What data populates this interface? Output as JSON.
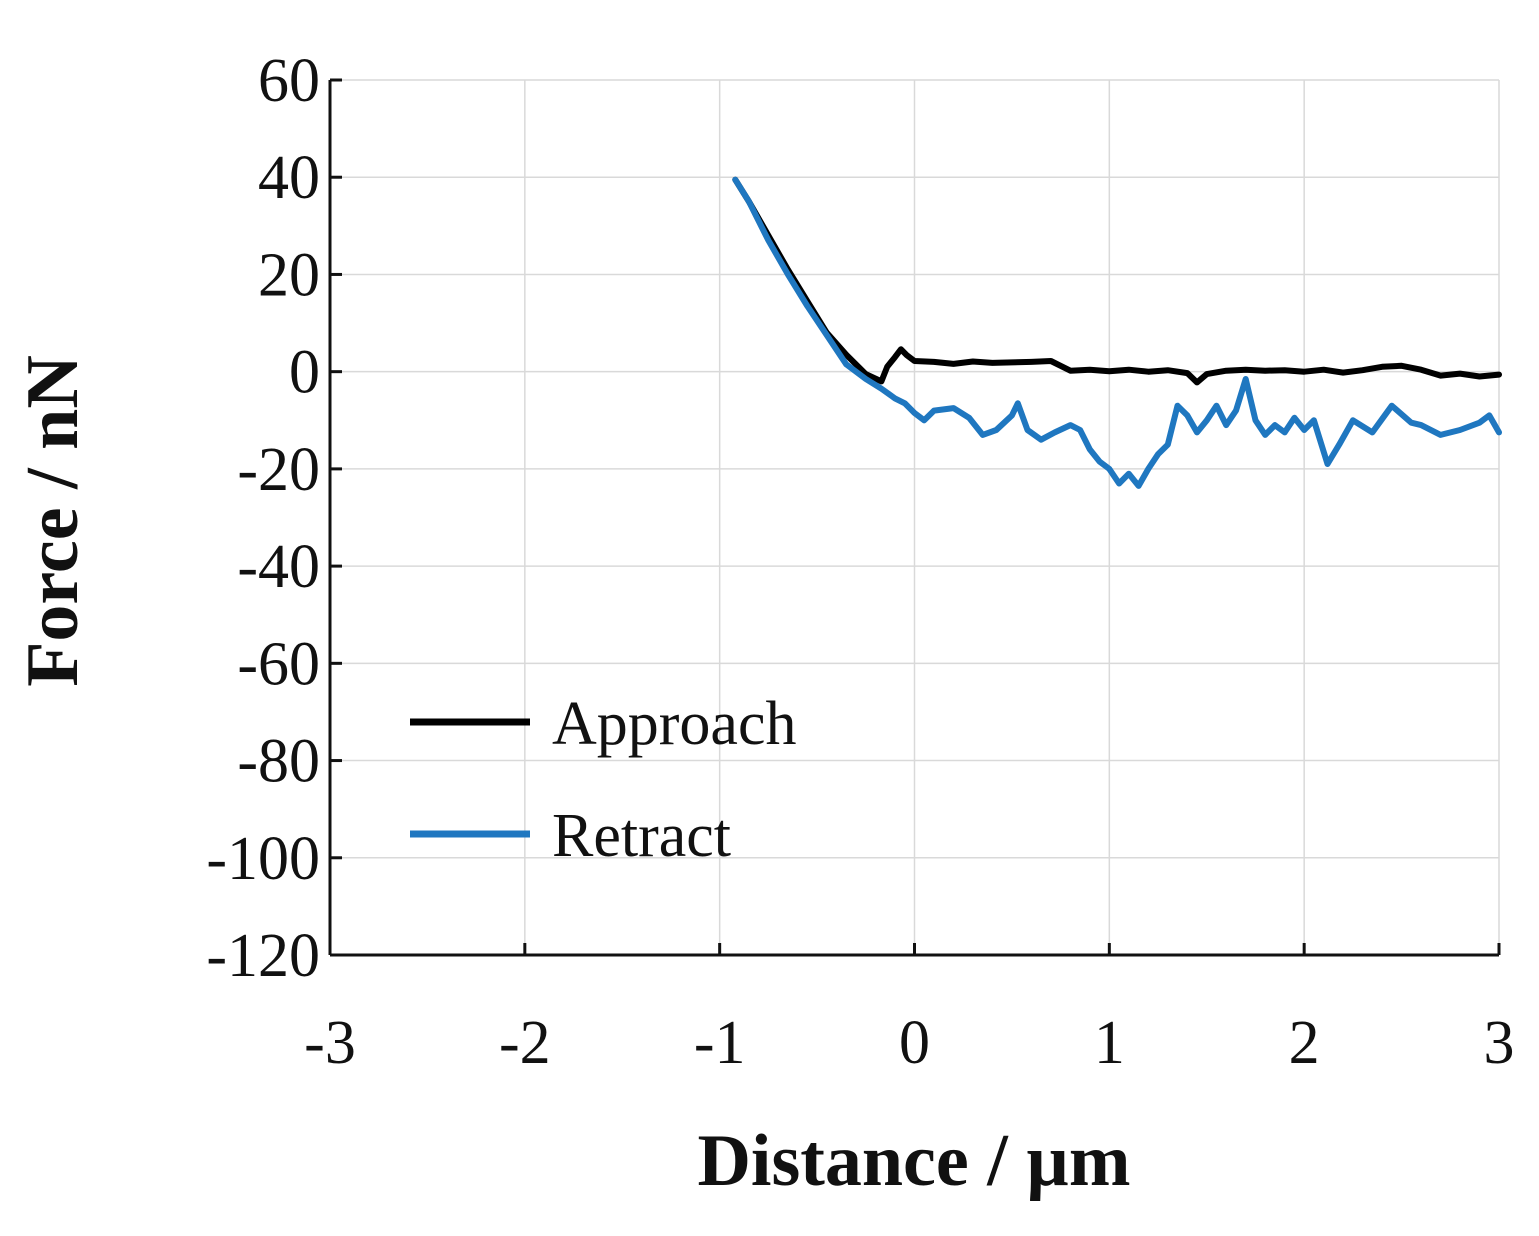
{
  "chart_data": {
    "type": "line",
    "title": "",
    "xlabel": "Distance / µm",
    "ylabel": "Force / nN",
    "xlim": [
      -3,
      3
    ],
    "ylim": [
      -120,
      60
    ],
    "xticks": [
      -3,
      -2,
      -1,
      0,
      1,
      2,
      3
    ],
    "yticks": [
      60,
      40,
      20,
      0,
      -20,
      -40,
      -60,
      -80,
      -100,
      -120
    ],
    "grid": true,
    "legend_position": "lower-left",
    "series": [
      {
        "name": "Approach",
        "color": "#000000",
        "points": [
          [
            -0.92,
            39.5
          ],
          [
            -0.85,
            35
          ],
          [
            -0.75,
            28
          ],
          [
            -0.65,
            21
          ],
          [
            -0.55,
            14.5
          ],
          [
            -0.45,
            8
          ],
          [
            -0.35,
            3.5
          ],
          [
            -0.25,
            -0.5
          ],
          [
            -0.17,
            -2
          ],
          [
            -0.14,
            1
          ],
          [
            -0.1,
            3
          ],
          [
            -0.07,
            4.6
          ],
          [
            -0.04,
            3.4
          ],
          [
            0,
            2.2
          ],
          [
            0.1,
            2.0
          ],
          [
            0.2,
            1.6
          ],
          [
            0.3,
            2.1
          ],
          [
            0.4,
            1.8
          ],
          [
            0.5,
            1.9
          ],
          [
            0.6,
            2.0
          ],
          [
            0.7,
            2.2
          ],
          [
            0.75,
            1.2
          ],
          [
            0.8,
            0.2
          ],
          [
            0.9,
            0.4
          ],
          [
            1.0,
            0.1
          ],
          [
            1.1,
            0.4
          ],
          [
            1.2,
            0.0
          ],
          [
            1.3,
            0.3
          ],
          [
            1.4,
            -0.3
          ],
          [
            1.45,
            -2.2
          ],
          [
            1.5,
            -0.5
          ],
          [
            1.6,
            0.2
          ],
          [
            1.7,
            0.4
          ],
          [
            1.8,
            0.2
          ],
          [
            1.9,
            0.3
          ],
          [
            2.0,
            0.0
          ],
          [
            2.1,
            0.4
          ],
          [
            2.2,
            -0.2
          ],
          [
            2.3,
            0.3
          ],
          [
            2.4,
            1.0
          ],
          [
            2.5,
            1.2
          ],
          [
            2.6,
            0.4
          ],
          [
            2.7,
            -0.8
          ],
          [
            2.8,
            -0.4
          ],
          [
            2.9,
            -1.0
          ],
          [
            3.0,
            -0.6
          ]
        ]
      },
      {
        "name": "Retract",
        "color": "#1f77c0",
        "points": [
          [
            -0.92,
            39.5
          ],
          [
            -0.85,
            35
          ],
          [
            -0.75,
            27
          ],
          [
            -0.65,
            20
          ],
          [
            -0.55,
            13.5
          ],
          [
            -0.45,
            7.5
          ],
          [
            -0.35,
            1.5
          ],
          [
            -0.25,
            -1.5
          ],
          [
            -0.17,
            -3.5
          ],
          [
            -0.1,
            -5.5
          ],
          [
            -0.05,
            -6.5
          ],
          [
            0,
            -8.5
          ],
          [
            0.05,
            -10
          ],
          [
            0.1,
            -8
          ],
          [
            0.2,
            -7.5
          ],
          [
            0.28,
            -9.5
          ],
          [
            0.35,
            -13
          ],
          [
            0.42,
            -12
          ],
          [
            0.5,
            -9
          ],
          [
            0.53,
            -6.5
          ],
          [
            0.58,
            -12
          ],
          [
            0.65,
            -14
          ],
          [
            0.72,
            -12.5
          ],
          [
            0.8,
            -11
          ],
          [
            0.85,
            -12
          ],
          [
            0.9,
            -16
          ],
          [
            0.95,
            -18.5
          ],
          [
            1.0,
            -20
          ],
          [
            1.05,
            -23
          ],
          [
            1.1,
            -21
          ],
          [
            1.15,
            -23.5
          ],
          [
            1.2,
            -20
          ],
          [
            1.25,
            -17
          ],
          [
            1.3,
            -15
          ],
          [
            1.35,
            -7
          ],
          [
            1.4,
            -9
          ],
          [
            1.45,
            -12.5
          ],
          [
            1.5,
            -10
          ],
          [
            1.55,
            -7
          ],
          [
            1.6,
            -11
          ],
          [
            1.65,
            -8
          ],
          [
            1.7,
            -1.5
          ],
          [
            1.75,
            -10
          ],
          [
            1.8,
            -13
          ],
          [
            1.85,
            -11
          ],
          [
            1.9,
            -12.5
          ],
          [
            1.95,
            -9.5
          ],
          [
            2.0,
            -12
          ],
          [
            2.05,
            -10
          ],
          [
            2.12,
            -19
          ],
          [
            2.18,
            -15
          ],
          [
            2.25,
            -10
          ],
          [
            2.35,
            -12.5
          ],
          [
            2.45,
            -7
          ],
          [
            2.55,
            -10.5
          ],
          [
            2.6,
            -11
          ],
          [
            2.7,
            -13
          ],
          [
            2.8,
            -12
          ],
          [
            2.9,
            -10.5
          ],
          [
            2.95,
            -9
          ],
          [
            3.0,
            -12.5
          ]
        ]
      }
    ]
  }
}
